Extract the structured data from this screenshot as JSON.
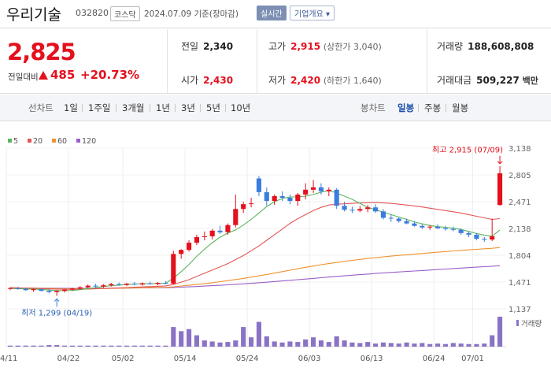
{
  "header": {
    "name": "우리기술",
    "code": "032820",
    "market": "코스닥",
    "date": "2024.07.09 기준(장마감)",
    "realtime": "실시간",
    "info_button": "기업개요 ▾"
  },
  "quote": {
    "price": "2,825",
    "change_label": "전일대비",
    "change": "485",
    "rate": "+20.73%",
    "prev_label": "전일",
    "prev": "2,340",
    "open_label": "시가",
    "open": "2,430",
    "high_label": "고가",
    "high": "2,915",
    "upper_limit": "(상한가 3,040)",
    "low_label": "저가",
    "low": "2,420",
    "lower_limit": "(하한가 1,640)",
    "volume_label": "거래량",
    "volume": "188,608,808",
    "amount_label": "거래대금",
    "amount": "509,227",
    "amount_unit": "백만"
  },
  "tabs": {
    "line_label": "선차트",
    "line_periods": [
      "1일",
      "1주일",
      "3개월",
      "1년",
      "3년",
      "5년",
      "10년"
    ],
    "candle_label": "봉차트",
    "candle_periods": [
      "일봉",
      "주봉",
      "월봉"
    ],
    "active_candle": "일봉"
  },
  "colors": {
    "up": "#e4101d",
    "down": "#3a7ddf",
    "ma5": "#5bb55a",
    "ma20": "#e25656",
    "ma60": "#f0922e",
    "ma120": "#9a5fc9",
    "volume": "#8a72c5"
  },
  "chart_data": {
    "type": "candlestick",
    "moving_averages": [
      "5",
      "20",
      "60",
      "120"
    ],
    "y_ticks": [
      "3,138",
      "2,805",
      "2,471",
      "2,138",
      "1,804",
      "1,471",
      "1,137"
    ],
    "ylim": [
      1137,
      3138
    ],
    "x_ticks": [
      "04/11",
      "04/22",
      "05/02",
      "05/14",
      "05/24",
      "06/03",
      "06/13",
      "06/24",
      "07/01"
    ],
    "max_label": "최고 2,915 (07/09)",
    "min_label": "최저 1,299 (04/19)",
    "volume_label": "거래량",
    "candles": [
      [
        1390,
        1405,
        1370,
        1395
      ],
      [
        1395,
        1410,
        1375,
        1385
      ],
      [
        1385,
        1400,
        1360,
        1370
      ],
      [
        1370,
        1390,
        1350,
        1380
      ],
      [
        1380,
        1395,
        1355,
        1360
      ],
      [
        1360,
        1380,
        1330,
        1345
      ],
      [
        1345,
        1370,
        1299,
        1360
      ],
      [
        1360,
        1385,
        1340,
        1375
      ],
      [
        1375,
        1400,
        1360,
        1390
      ],
      [
        1390,
        1420,
        1375,
        1405
      ],
      [
        1405,
        1440,
        1395,
        1425
      ],
      [
        1425,
        1450,
        1405,
        1415
      ],
      [
        1415,
        1445,
        1400,
        1430
      ],
      [
        1430,
        1460,
        1415,
        1445
      ],
      [
        1445,
        1465,
        1425,
        1435
      ],
      [
        1435,
        1460,
        1420,
        1450
      ],
      [
        1450,
        1470,
        1430,
        1440
      ],
      [
        1440,
        1465,
        1425,
        1455
      ],
      [
        1455,
        1475,
        1435,
        1445
      ],
      [
        1445,
        1470,
        1430,
        1460
      ],
      [
        1460,
        1480,
        1440,
        1450
      ],
      [
        1450,
        1860,
        1440,
        1820
      ],
      [
        1820,
        1880,
        1760,
        1870
      ],
      [
        1870,
        1990,
        1850,
        1960
      ],
      [
        1960,
        2060,
        1930,
        2030
      ],
      [
        2030,
        2100,
        1990,
        2040
      ],
      [
        2040,
        2130,
        2000,
        2110
      ],
      [
        2110,
        2170,
        2070,
        2090
      ],
      [
        2090,
        2200,
        2060,
        2180
      ],
      [
        2180,
        2560,
        2150,
        2380
      ],
      [
        2380,
        2470,
        2330,
        2440
      ],
      [
        2440,
        2520,
        2400,
        2450
      ],
      [
        2760,
        2790,
        2540,
        2590
      ],
      [
        2590,
        2650,
        2420,
        2480
      ],
      [
        2480,
        2560,
        2430,
        2540
      ],
      [
        2540,
        2600,
        2480,
        2520
      ],
      [
        2520,
        2560,
        2440,
        2480
      ],
      [
        2480,
        2580,
        2420,
        2560
      ],
      [
        2560,
        2700,
        2500,
        2620
      ],
      [
        2620,
        2740,
        2580,
        2650
      ],
      [
        2650,
        2700,
        2560,
        2600
      ],
      [
        2600,
        2650,
        2540,
        2620
      ],
      [
        2620,
        2640,
        2380,
        2420
      ],
      [
        2420,
        2470,
        2350,
        2370
      ],
      [
        2370,
        2410,
        2330,
        2360
      ],
      [
        2360,
        2420,
        2340,
        2380
      ],
      [
        2380,
        2430,
        2340,
        2400
      ],
      [
        2400,
        2440,
        2330,
        2350
      ],
      [
        2350,
        2380,
        2250,
        2270
      ],
      [
        2270,
        2310,
        2220,
        2260
      ],
      [
        2260,
        2280,
        2210,
        2230
      ],
      [
        2230,
        2260,
        2190,
        2200
      ],
      [
        2200,
        2230,
        2160,
        2170
      ],
      [
        2170,
        2190,
        2130,
        2150
      ],
      [
        2150,
        2180,
        2120,
        2160
      ],
      [
        2160,
        2190,
        2130,
        2140
      ],
      [
        2140,
        2170,
        2110,
        2130
      ],
      [
        2130,
        2160,
        2100,
        2120
      ],
      [
        2120,
        2140,
        2060,
        2080
      ],
      [
        2080,
        2100,
        2030,
        2060
      ],
      [
        2060,
        2080,
        1990,
        2010
      ],
      [
        2010,
        2030,
        1970,
        2000
      ],
      [
        2000,
        2260,
        1980,
        2040
      ],
      [
        2430,
        2915,
        2420,
        2825
      ]
    ],
    "ma5": [
      1390,
      1388,
      1385,
      1382,
      1378,
      1370,
      1365,
      1363,
      1366,
      1375,
      1388,
      1402,
      1415,
      1425,
      1432,
      1440,
      1445,
      1448,
      1450,
      1452,
      1455,
      1520,
      1600,
      1690,
      1790,
      1880,
      1960,
      2030,
      2080,
      2120,
      2180,
      2250,
      2330,
      2410,
      2470,
      2510,
      2530,
      2530,
      2540,
      2560,
      2590,
      2610,
      2580,
      2540,
      2500,
      2450,
      2400,
      2370,
      2340,
      2310,
      2280,
      2250,
      2220,
      2195,
      2175,
      2160,
      2150,
      2140,
      2125,
      2100,
      2075,
      2055,
      2040,
      2120
    ],
    "ma20": [
      1400,
      1398,
      1395,
      1392,
      1388,
      1385,
      1382,
      1380,
      1380,
      1381,
      1383,
      1386,
      1390,
      1394,
      1398,
      1402,
      1406,
      1410,
      1414,
      1418,
      1422,
      1440,
      1470,
      1500,
      1540,
      1580,
      1620,
      1660,
      1700,
      1750,
      1800,
      1860,
      1920,
      1990,
      2060,
      2130,
      2200,
      2260,
      2310,
      2360,
      2400,
      2430,
      2440,
      2445,
      2450,
      2455,
      2458,
      2460,
      2455,
      2450,
      2440,
      2430,
      2418,
      2405,
      2390,
      2375,
      2360,
      2345,
      2330,
      2310,
      2290,
      2270,
      2250,
      2260
    ],
    "ma60": [
      1400,
      1398,
      1396,
      1394,
      1392,
      1390,
      1388,
      1386,
      1385,
      1385,
      1386,
      1387,
      1389,
      1391,
      1393,
      1395,
      1397,
      1399,
      1401,
      1403,
      1405,
      1412,
      1420,
      1430,
      1440,
      1450,
      1462,
      1475,
      1488,
      1502,
      1516,
      1532,
      1548,
      1565,
      1582,
      1600,
      1618,
      1636,
      1654,
      1670,
      1686,
      1700,
      1714,
      1728,
      1740,
      1752,
      1764,
      1774,
      1784,
      1793,
      1802,
      1810,
      1818,
      1826,
      1834,
      1842,
      1850,
      1858,
      1865,
      1872,
      1878,
      1884,
      1890,
      1900
    ],
    "ma120": [
      1396,
      1396,
      1395,
      1395,
      1394,
      1394,
      1393,
      1393,
      1392,
      1392,
      1392,
      1393,
      1393,
      1394,
      1394,
      1395,
      1396,
      1397,
      1398,
      1399,
      1400,
      1403,
      1407,
      1411,
      1415,
      1420,
      1425,
      1430,
      1436,
      1442,
      1448,
      1455,
      1462,
      1469,
      1476,
      1484,
      1492,
      1500,
      1508,
      1516,
      1524,
      1532,
      1540,
      1548,
      1556,
      1563,
      1570,
      1577,
      1584,
      1590,
      1596,
      1602,
      1608,
      1614,
      1620,
      1626,
      1632,
      1638,
      1644,
      1650,
      1656,
      1662,
      1668,
      1675
    ],
    "volume": [
      2,
      2,
      2,
      2,
      2,
      3,
      3,
      2,
      2,
      2,
      2,
      2,
      2,
      2,
      2,
      2,
      2,
      2,
      2,
      2,
      2,
      38,
      30,
      34,
      22,
      12,
      10,
      8,
      9,
      12,
      38,
      18,
      48,
      20,
      10,
      8,
      10,
      9,
      14,
      18,
      12,
      9,
      20,
      12,
      8,
      7,
      9,
      6,
      8,
      7,
      6,
      8,
      6,
      7,
      5,
      6,
      5,
      7,
      6,
      5,
      5,
      6,
      22,
      58
    ]
  }
}
